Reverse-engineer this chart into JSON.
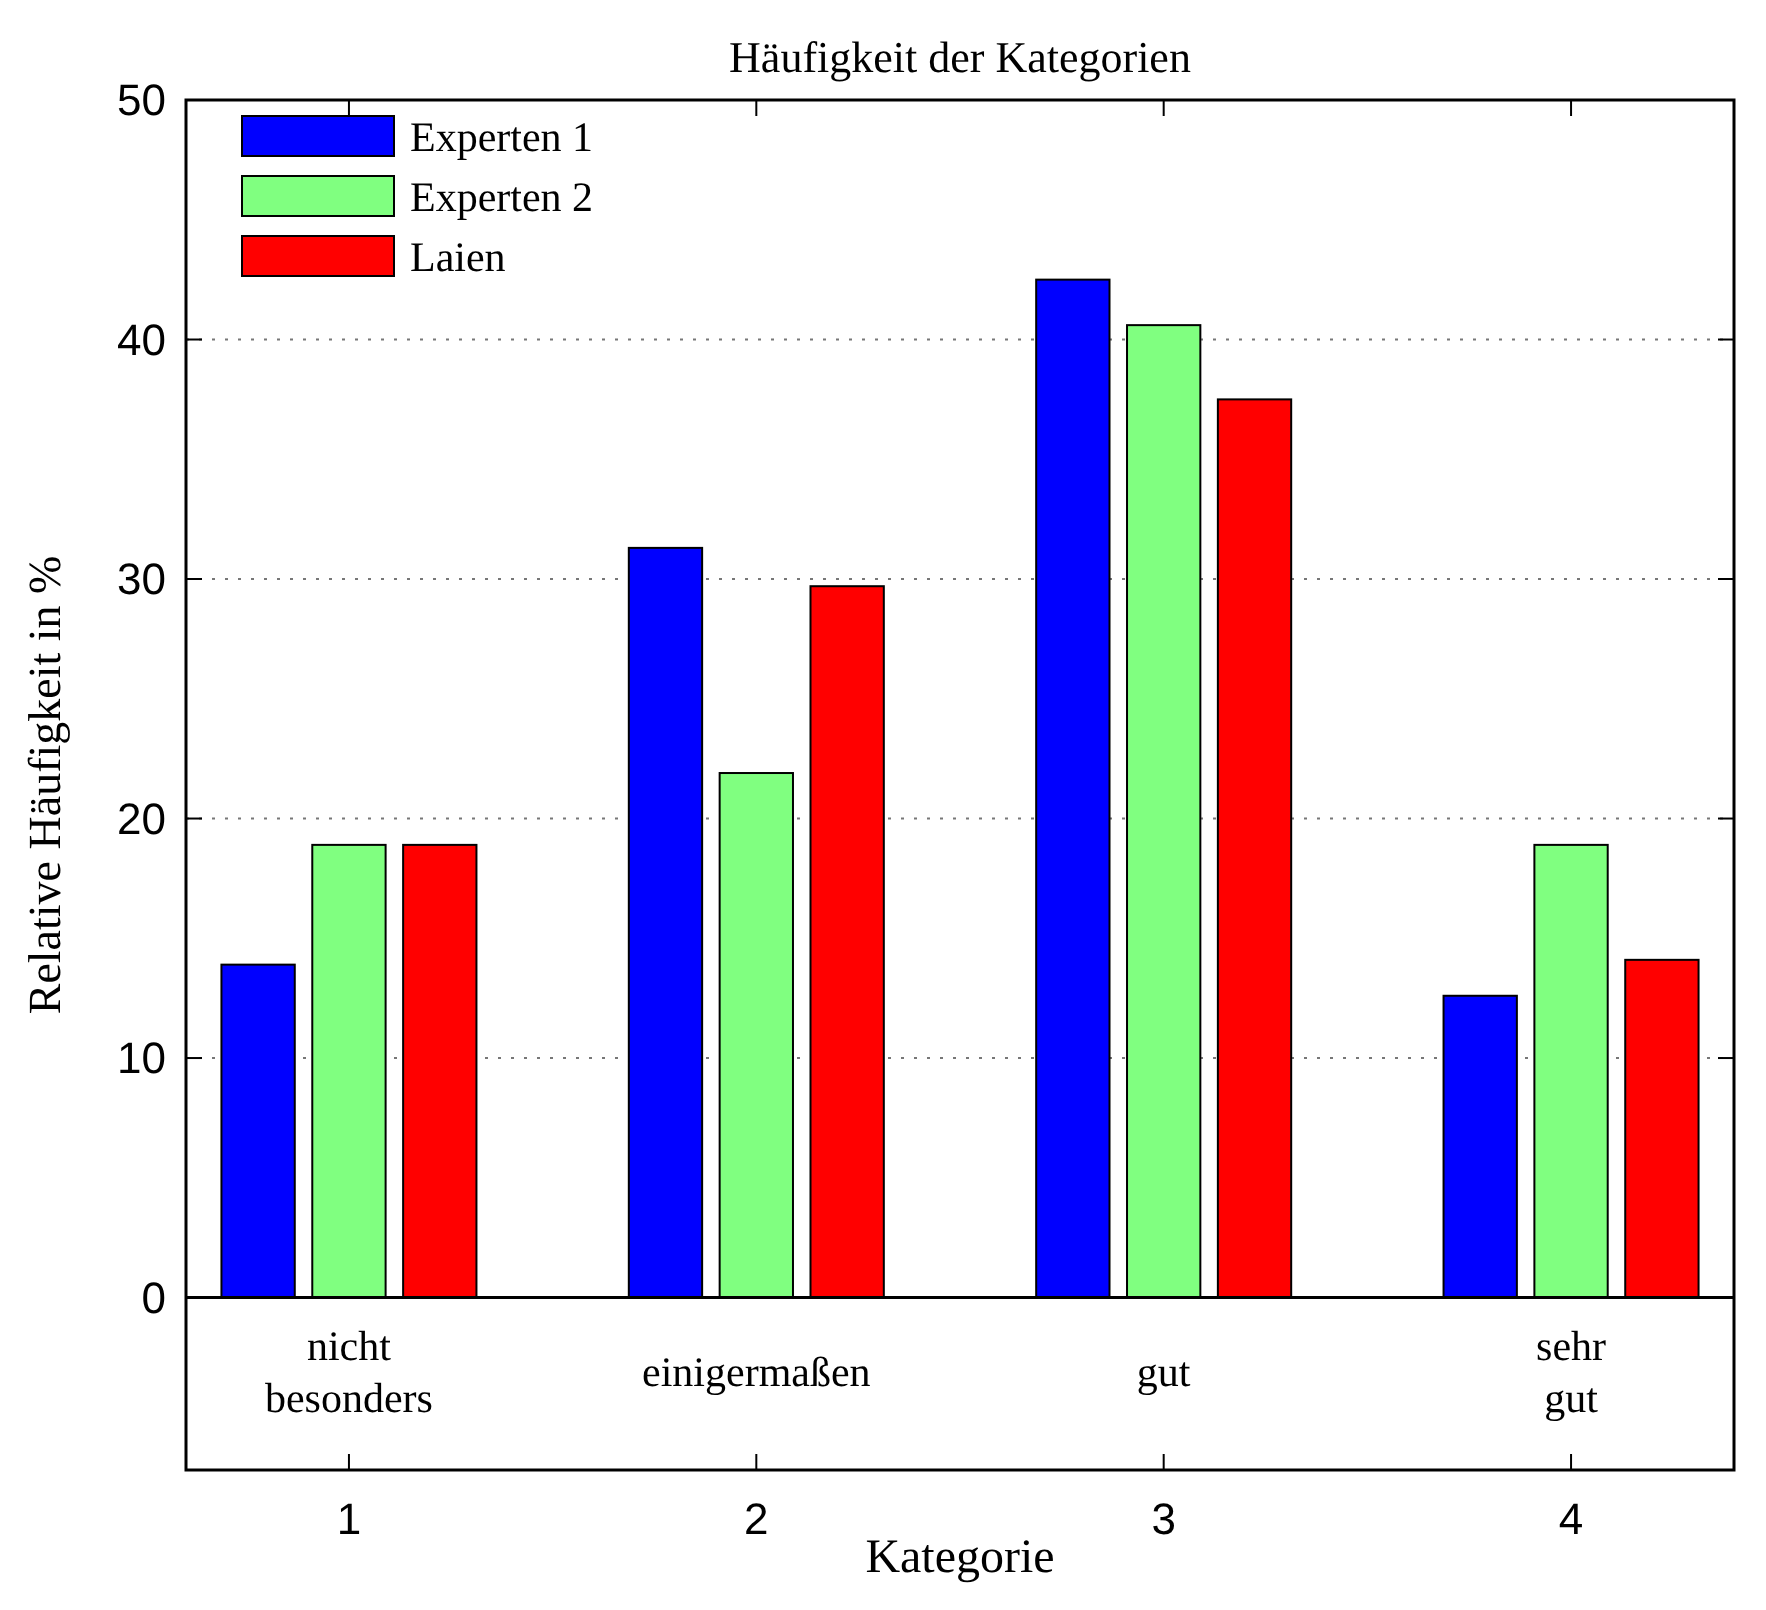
{
  "chart_data": {
    "type": "bar",
    "title": "Häufigkeit der Kategorien",
    "xlabel": "Kategorie",
    "ylabel": "Relative Häufigkeit in %",
    "x": [
      1,
      2,
      3,
      4
    ],
    "xlim": [
      0.6,
      4.4
    ],
    "xticks": [
      1,
      2,
      3,
      4
    ],
    "ylim": [
      -7.2,
      50
    ],
    "yticks": [
      0,
      10,
      20,
      30,
      40,
      50
    ],
    "grid": "y",
    "legend": "top left",
    "series": [
      {
        "name": "Experten 1",
        "color": "#0000ff",
        "values": [
          13.9,
          31.3,
          42.5,
          12.6
        ]
      },
      {
        "name": "Experten 2",
        "color": "#80ff80",
        "values": [
          18.9,
          21.9,
          40.6,
          18.9
        ]
      },
      {
        "name": "Laien",
        "color": "#ff0000",
        "values": [
          18.9,
          29.7,
          37.5,
          14.1
        ]
      }
    ],
    "annotations": [
      "nicht\nbesonders",
      "einigermaßen",
      "gut",
      "sehr\ngut"
    ]
  }
}
